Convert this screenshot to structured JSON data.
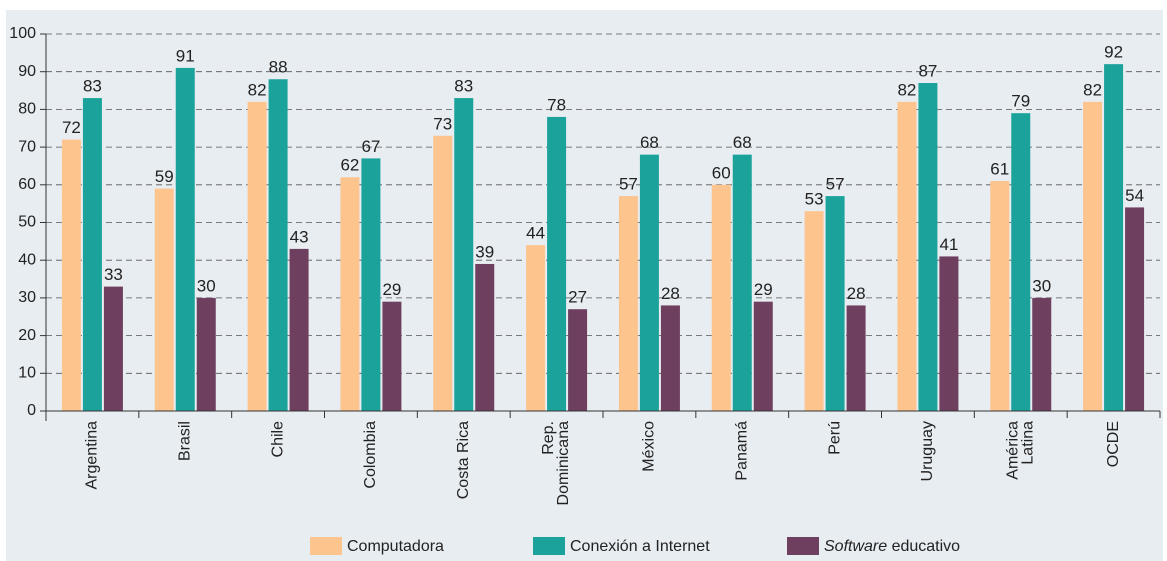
{
  "chart_data": {
    "type": "bar",
    "categories": [
      "Argentina",
      "Brasil",
      "Chile",
      "Colombia",
      "Costa Rica",
      "Rep. Dominicana",
      "México",
      "Panamá",
      "Perú",
      "Uruguay",
      "América Latina",
      "OCDE"
    ],
    "series": [
      {
        "name": "Computadora",
        "color": "#fdc48e",
        "values": [
          72,
          59,
          82,
          62,
          73,
          44,
          57,
          60,
          53,
          82,
          61,
          82
        ]
      },
      {
        "name": "Conexión a Internet",
        "color": "#1ba39b",
        "values": [
          83,
          91,
          88,
          67,
          83,
          78,
          68,
          68,
          57,
          87,
          79,
          92
        ]
      },
      {
        "name": "Software educativo",
        "color": "#6f3f5f",
        "values": [
          33,
          30,
          43,
          29,
          39,
          27,
          28,
          29,
          28,
          41,
          30,
          54
        ]
      }
    ],
    "ylim": [
      0,
      100
    ],
    "yticks": [
      0,
      10,
      20,
      30,
      40,
      50,
      60,
      70,
      80,
      90,
      100
    ],
    "grid": true
  }
}
